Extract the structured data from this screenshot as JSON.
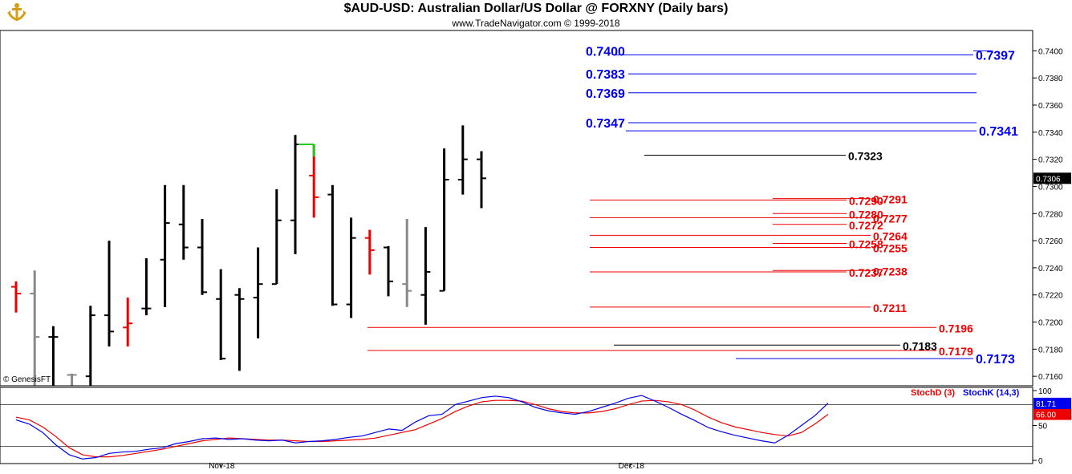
{
  "header": {
    "title": "$AUD-USD:  Australian Dollar/US Dollar @ FORXNY  (Daily bars)",
    "subtitle": "www.TradeNavigator.com © 1999-2018"
  },
  "copyright": "© GenesisFT",
  "colors": {
    "blue": "#0000ee",
    "red": "#ee0000",
    "black": "#000000",
    "gray": "#888888",
    "green": "#22cc22"
  },
  "chart_data": [
    {
      "type": "bar",
      "subtype": "ohlc",
      "title": "$AUD-USD:  Australian Dollar/US Dollar @ FORXNY  (Daily bars)",
      "ylim": [
        0.7153,
        0.7415
      ],
      "y_ticks": [
        "0.7160",
        "0.7180",
        "0.7200",
        "0.7220",
        "0.7240",
        "0.7260",
        "0.7280",
        "0.7300",
        "0.7320",
        "0.7340",
        "0.7360",
        "0.7380",
        "0.7400"
      ],
      "last_price": "0.7306",
      "x_labels": [
        {
          "label": "Nov-18",
          "bar": 11
        },
        {
          "label": "Dec-18",
          "bar": 33
        }
      ],
      "bars": [
        {
          "o": 0.7226,
          "h": 0.723,
          "l": 0.7207,
          "c": 0.7221,
          "color": "red"
        },
        {
          "o": 0.7221,
          "h": 0.7238,
          "l": 0.7153,
          "c": 0.7189,
          "color": "gray"
        },
        {
          "o": 0.7189,
          "h": 0.7197,
          "l": 0.7153,
          "c": 0.7189,
          "color": "black"
        },
        {
          "o": 0.7161,
          "h": 0.7162,
          "l": 0.7153,
          "c": 0.7161,
          "color": "gray"
        },
        {
          "o": 0.716,
          "h": 0.7212,
          "l": 0.7153,
          "c": 0.7205,
          "color": "black"
        },
        {
          "o": 0.7205,
          "h": 0.726,
          "l": 0.7182,
          "c": 0.7193,
          "color": "black"
        },
        {
          "o": 0.7196,
          "h": 0.7218,
          "l": 0.7182,
          "c": 0.7199,
          "color": "red"
        },
        {
          "o": 0.721,
          "h": 0.7247,
          "l": 0.7205,
          "c": 0.721,
          "color": "black"
        },
        {
          "o": 0.7246,
          "h": 0.7301,
          "l": 0.7211,
          "c": 0.7273,
          "color": "black"
        },
        {
          "o": 0.7272,
          "h": 0.7301,
          "l": 0.7246,
          "c": 0.7255,
          "color": "black"
        },
        {
          "o": 0.7255,
          "h": 0.7276,
          "l": 0.722,
          "c": 0.7222,
          "color": "black"
        },
        {
          "o": 0.7217,
          "h": 0.7239,
          "l": 0.7172,
          "c": 0.7173,
          "color": "black"
        },
        {
          "o": 0.722,
          "h": 0.7225,
          "l": 0.7164,
          "c": 0.7217,
          "color": "black"
        },
        {
          "o": 0.7218,
          "h": 0.7255,
          "l": 0.7188,
          "c": 0.7228,
          "color": "black"
        },
        {
          "o": 0.7228,
          "h": 0.7298,
          "l": 0.7228,
          "c": 0.7275,
          "color": "black"
        },
        {
          "o": 0.7275,
          "h": 0.7338,
          "l": 0.725,
          "c": 0.7331,
          "color": "black"
        },
        {
          "o": 0.7308,
          "h": 0.7331,
          "l": 0.7277,
          "c": 0.7292,
          "color": "red"
        },
        {
          "o": 0.7294,
          "h": 0.7301,
          "l": 0.7212,
          "c": 0.7213,
          "color": "black"
        },
        {
          "o": 0.7213,
          "h": 0.7277,
          "l": 0.7203,
          "c": 0.7262,
          "color": "black"
        },
        {
          "o": 0.7262,
          "h": 0.7268,
          "l": 0.7235,
          "c": 0.7253,
          "color": "red"
        },
        {
          "o": 0.7255,
          "h": 0.7256,
          "l": 0.7219,
          "c": 0.723,
          "color": "black"
        },
        {
          "o": 0.7228,
          "h": 0.7276,
          "l": 0.7211,
          "c": 0.7223,
          "color": "gray"
        },
        {
          "o": 0.722,
          "h": 0.727,
          "l": 0.7198,
          "c": 0.7237,
          "color": "black"
        },
        {
          "o": 0.7223,
          "h": 0.7328,
          "l": 0.7223,
          "c": 0.7305,
          "color": "black"
        },
        {
          "o": 0.7305,
          "h": 0.7345,
          "l": 0.7294,
          "c": 0.732,
          "color": "black"
        },
        {
          "o": 0.732,
          "h": 0.7326,
          "l": 0.7284,
          "c": 0.7306,
          "color": "black"
        }
      ],
      "levels": [
        {
          "value": 0.74,
          "label": "0.7400",
          "color": "blue",
          "x0": 1237,
          "x1": 1213,
          "side": "left"
        },
        {
          "value": 0.7397,
          "label": "0.7397",
          "color": "blue",
          "x0": 765,
          "x1": 1213,
          "side": "right"
        },
        {
          "value": 0.7383,
          "label": "0.7383",
          "color": "blue",
          "x0": 783,
          "x1": 1217,
          "side": "left"
        },
        {
          "value": 0.7369,
          "label": "0.7369",
          "color": "blue",
          "x0": 783,
          "x1": 1217,
          "side": "left"
        },
        {
          "value": 0.7347,
          "label": "0.7347",
          "color": "blue",
          "x0": 783,
          "x1": 1217,
          "side": "left"
        },
        {
          "value": 0.7341,
          "label": "0.7341",
          "color": "blue",
          "x0": 780,
          "x1": 1217,
          "side": "right"
        },
        {
          "value": 0.7323,
          "label": "0.7323",
          "color": "black",
          "x0": 803,
          "x1": 1054,
          "side": "right"
        },
        {
          "value": 0.7291,
          "label": "0.7291",
          "color": "red",
          "x0": 963,
          "x1": 1085,
          "side": "right"
        },
        {
          "value": 0.729,
          "label": "0.7290",
          "color": "red",
          "x0": 735,
          "x1": 1055,
          "side": "right"
        },
        {
          "value": 0.728,
          "label": "0.7280",
          "color": "red",
          "x0": 963,
          "x1": 1055,
          "side": "right"
        },
        {
          "value": 0.7277,
          "label": "0.7277",
          "color": "red",
          "x0": 735,
          "x1": 1085,
          "side": "right"
        },
        {
          "value": 0.7272,
          "label": "0.7272",
          "color": "red",
          "x0": 963,
          "x1": 1055,
          "side": "right"
        },
        {
          "value": 0.7264,
          "label": "0.7264",
          "color": "red",
          "x0": 735,
          "x1": 1085,
          "side": "right"
        },
        {
          "value": 0.7258,
          "label": "0.7258",
          "color": "red",
          "x0": 963,
          "x1": 1055,
          "side": "right"
        },
        {
          "value": 0.7255,
          "label": "0.7255",
          "color": "red",
          "x0": 735,
          "x1": 1085,
          "side": "right"
        },
        {
          "value": 0.7238,
          "label": "0.7238",
          "color": "red",
          "x0": 963,
          "x1": 1085,
          "side": "right"
        },
        {
          "value": 0.7237,
          "label": "0.7237",
          "color": "red",
          "x0": 735,
          "x1": 1055,
          "side": "right"
        },
        {
          "value": 0.7211,
          "label": "0.7211",
          "color": "red",
          "x0": 735,
          "x1": 1085,
          "side": "right"
        },
        {
          "value": 0.7196,
          "label": "0.7196",
          "color": "red",
          "x0": 458,
          "x1": 1167,
          "side": "right"
        },
        {
          "value": 0.7183,
          "label": "0.7183",
          "color": "black",
          "x0": 765,
          "x1": 1122,
          "side": "right"
        },
        {
          "value": 0.7179,
          "label": "0.7179",
          "color": "red",
          "x0": 458,
          "x1": 1167,
          "side": "right"
        },
        {
          "value": 0.7173,
          "label": "0.7173",
          "color": "blue",
          "x0": 917,
          "x1": 1213,
          "side": "right"
        }
      ]
    },
    {
      "type": "line",
      "title": "Stochastic",
      "ylim": [
        0,
        100
      ],
      "y_ticks": [
        "0",
        "50",
        "100"
      ],
      "ref_lines": [
        80,
        20
      ],
      "series": [
        {
          "name": "StochD (3)",
          "color": "red",
          "last": "66.00",
          "values": [
            62,
            58,
            48,
            34,
            18,
            8,
            5,
            5,
            7,
            10,
            13,
            16,
            20,
            24,
            28,
            30,
            32,
            31,
            30,
            29,
            29,
            28,
            27,
            27,
            28,
            29,
            30,
            32,
            36,
            40,
            44,
            52,
            60,
            70,
            78,
            84,
            86,
            86,
            85,
            80,
            74,
            70,
            68,
            68,
            70,
            74,
            80,
            85,
            86,
            84,
            80,
            72,
            62,
            54,
            48,
            44,
            40,
            37,
            35,
            40,
            52,
            66
          ]
        },
        {
          "name": "StochK (14,3)",
          "color": "blue",
          "last": "81.71",
          "values": [
            58,
            52,
            40,
            22,
            8,
            2,
            4,
            10,
            12,
            13,
            16,
            18,
            24,
            27,
            31,
            32,
            30,
            31,
            29,
            28,
            29,
            25,
            27,
            28,
            30,
            33,
            35,
            40,
            45,
            43,
            55,
            64,
            66,
            80,
            85,
            90,
            92,
            90,
            84,
            76,
            71,
            68,
            66,
            70,
            76,
            82,
            89,
            93,
            85,
            76,
            66,
            57,
            47,
            41,
            36,
            32,
            28,
            25,
            36,
            50,
            64,
            82
          ]
        }
      ]
    }
  ]
}
